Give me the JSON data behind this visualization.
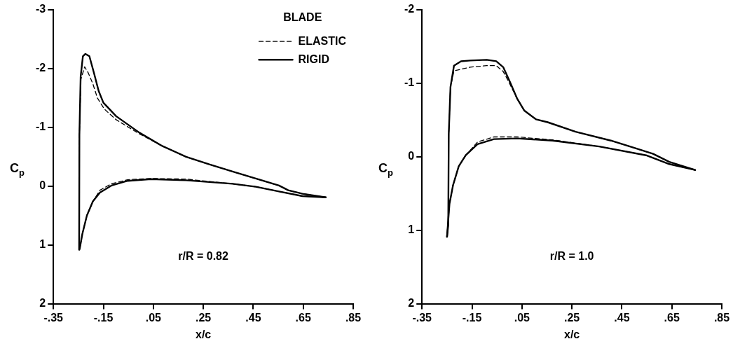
{
  "chart_data": [
    {
      "type": "line",
      "xlabel": "x/c",
      "ylabel": "C$_{p}$",
      "legend_title": "BLADE",
      "legend": "top right",
      "marker": "none",
      "annotations": [
        "r/R = 0.82"
      ],
      "xlim": [
        -0.35,
        0.85
      ],
      "ylim": [
        2,
        -3
      ],
      "xticks": [
        {
          "value": -0.35,
          "label": "-.35"
        },
        {
          "value": -0.15,
          "label": "-.15"
        },
        {
          "value": 0.05,
          "label": ".05"
        },
        {
          "value": 0.25,
          "label": ".25"
        },
        {
          "value": 0.45,
          "label": ".45"
        },
        {
          "value": 0.65,
          "label": ".65"
        },
        {
          "value": 0.85,
          "label": ".85"
        }
      ],
      "yticks": [
        -3,
        -2,
        -1,
        0,
        1,
        2
      ],
      "series": [
        {
          "name": "ELASTIC",
          "color": "#000000",
          "line_style": "dashed",
          "x": [
            -0.247,
            -0.246,
            -0.24,
            -0.225,
            -0.211,
            -0.192,
            -0.174,
            -0.146,
            -0.099,
            -0.006,
            0.087,
            0.181,
            0.274,
            0.367,
            0.46,
            0.553,
            0.59,
            0.647,
            0.74
          ],
          "values": [
            1.08,
            -0.87,
            -1.82,
            -2.03,
            -1.93,
            -1.74,
            -1.5,
            -1.31,
            -1.13,
            -0.89,
            -0.68,
            -0.5,
            -0.37,
            -0.25,
            -0.13,
            -0.01,
            0.07,
            0.13,
            0.19
          ]
        },
        {
          "name": "RIGID",
          "color": "#000000",
          "line_style": "solid",
          "x": [
            -0.247,
            -0.246,
            -0.241,
            -0.232,
            -0.222,
            -0.206,
            -0.188,
            -0.169,
            -0.15,
            -0.099,
            -0.006,
            0.087,
            0.181,
            0.274,
            0.367,
            0.46,
            0.553,
            0.59,
            0.647,
            0.74
          ],
          "values": [
            1.08,
            -0.87,
            -1.86,
            -2.21,
            -2.25,
            -2.21,
            -1.93,
            -1.62,
            -1.42,
            -1.19,
            -0.91,
            -0.68,
            -0.5,
            -0.37,
            -0.25,
            -0.13,
            -0.01,
            0.07,
            0.13,
            0.19
          ]
        },
        {
          "color": "#000000",
          "line_style": "dashed",
          "x": [
            -0.246,
            -0.244,
            -0.234,
            -0.216,
            -0.192,
            -0.164,
            -0.118,
            -0.053,
            0.04,
            0.181,
            0.367,
            0.46,
            0.553,
            0.647,
            0.74
          ],
          "values": [
            1.08,
            1.05,
            0.81,
            0.5,
            0.26,
            0.07,
            -0.04,
            -0.11,
            -0.13,
            -0.12,
            -0.04,
            0.01,
            0.09,
            0.17,
            0.19
          ]
        },
        {
          "color": "#000000",
          "line_style": "solid",
          "x": [
            -0.246,
            -0.244,
            -0.234,
            -0.216,
            -0.192,
            -0.164,
            -0.118,
            -0.053,
            0.04,
            0.181,
            0.367,
            0.46,
            0.553,
            0.647,
            0.74
          ],
          "values": [
            1.08,
            1.05,
            0.81,
            0.5,
            0.26,
            0.11,
            -0.01,
            -0.09,
            -0.12,
            -0.1,
            -0.04,
            0.01,
            0.09,
            0.17,
            0.19
          ]
        }
      ]
    },
    {
      "type": "line",
      "xlabel": "x/c",
      "ylabel": "C$_{p}$",
      "marker": "none",
      "annotations": [
        "r/R = 1.0"
      ],
      "xlim": [
        -0.35,
        0.85
      ],
      "ylim": [
        2,
        -2
      ],
      "xticks": [
        {
          "value": -0.35,
          "label": "-.35"
        },
        {
          "value": -0.15,
          "label": "-.15"
        },
        {
          "value": 0.05,
          "label": ".05"
        },
        {
          "value": 0.25,
          "label": ".25"
        },
        {
          "value": 0.45,
          "label": ".45"
        },
        {
          "value": 0.65,
          "label": ".65"
        },
        {
          "value": 0.85,
          "label": ".85"
        }
      ],
      "yticks": [
        -2,
        -1,
        0,
        1,
        2
      ],
      "series": [
        {
          "color": "#000000",
          "line_style": "dashed",
          "x": [
            -0.25,
            -0.245,
            -0.243,
            -0.236,
            -0.222,
            -0.156,
            -0.091,
            -0.053,
            -0.025,
            -0.006,
            0.031,
            0.059,
            0.106,
            0.153,
            0.265,
            0.406,
            0.5,
            0.575,
            0.64,
            0.743
          ],
          "values": [
            1.09,
            0.93,
            -0.31,
            -0.95,
            -1.17,
            -1.22,
            -1.24,
            -1.24,
            -1.16,
            -1.04,
            -0.79,
            -0.63,
            -0.51,
            -0.47,
            -0.34,
            -0.22,
            -0.12,
            -0.04,
            0.07,
            0.18
          ]
        },
        {
          "color": "#000000",
          "line_style": "solid",
          "x": [
            -0.25,
            -0.245,
            -0.243,
            -0.236,
            -0.222,
            -0.194,
            -0.156,
            -0.091,
            -0.053,
            -0.025,
            0.003,
            0.031,
            0.059,
            0.106,
            0.153,
            0.265,
            0.406,
            0.5,
            0.575,
            0.64,
            0.743
          ],
          "values": [
            1.09,
            0.93,
            -0.31,
            -0.95,
            -1.24,
            -1.3,
            -1.31,
            -1.32,
            -1.3,
            -1.22,
            -1.01,
            -0.79,
            -0.63,
            -0.51,
            -0.47,
            -0.34,
            -0.22,
            -0.12,
            -0.04,
            0.07,
            0.18
          ]
        },
        {
          "color": "#000000",
          "line_style": "dashed",
          "x": [
            -0.25,
            -0.24,
            -0.226,
            -0.203,
            -0.175,
            -0.128,
            -0.062,
            0.031,
            0.172,
            0.359,
            0.547,
            0.64,
            0.743
          ],
          "values": [
            1.09,
            0.64,
            0.39,
            0.13,
            -0.02,
            -0.2,
            -0.27,
            -0.27,
            -0.23,
            -0.14,
            -0.02,
            0.1,
            0.18
          ]
        },
        {
          "color": "#000000",
          "line_style": "solid",
          "x": [
            -0.25,
            -0.24,
            -0.226,
            -0.203,
            -0.175,
            -0.128,
            -0.062,
            0.031,
            0.172,
            0.359,
            0.547,
            0.64,
            0.743
          ],
          "values": [
            1.09,
            0.64,
            0.39,
            0.13,
            -0.02,
            -0.17,
            -0.24,
            -0.25,
            -0.22,
            -0.14,
            -0.02,
            0.1,
            0.18
          ]
        }
      ]
    }
  ]
}
